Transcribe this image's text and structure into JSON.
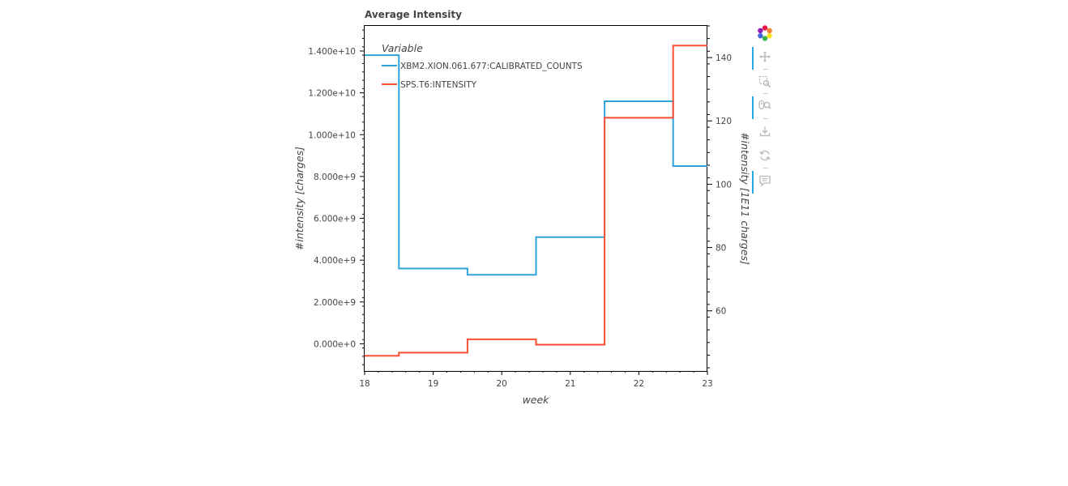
{
  "chart_data": {
    "type": "line",
    "step": true,
    "title": "Average Intensity",
    "xlabel": "week",
    "ylabel_left": "#intensity [charges]",
    "ylabel_right": "#intensity [1E11 charges]",
    "xlim": [
      18,
      23
    ],
    "ylim_left": [
      -1300000000,
      15200000000
    ],
    "ylim_right": [
      41,
      150
    ],
    "x_ticks": [
      "18",
      "19",
      "20",
      "21",
      "22",
      "23"
    ],
    "y_left_ticks": [
      "0.000e+0",
      "2.000e+9",
      "4.000e+9",
      "6.000e+9",
      "8.000e+9",
      "1.000e+10",
      "1.200e+10",
      "1.400e+10"
    ],
    "y_right_ticks": [
      "60",
      "80",
      "100",
      "120",
      "140"
    ],
    "legend_title": "Variable",
    "legend_position": "top-left",
    "x": [
      18,
      19,
      20,
      21,
      22,
      23
    ],
    "series": [
      {
        "name": "XBM2.XION.061.677:CALIBRATED_COUNTS",
        "axis": "left",
        "color": "#30a2da",
        "values": [
          13800000000,
          3600000000,
          3300000000,
          5100000000,
          11600000000,
          8500000000
        ]
      },
      {
        "name": "SPS.T6:INTENSITY",
        "axis": "right",
        "color": "#fc4f30",
        "values": [
          45.8,
          46.8,
          51.0,
          49.3,
          121.0,
          143.8
        ]
      }
    ]
  },
  "toolbar": {
    "logo": "bokeh-logo-icon",
    "tools": [
      "pan-icon",
      "box-zoom-icon",
      "wheel-zoom-icon",
      "save-icon",
      "reset-icon",
      "hover-icon"
    ]
  }
}
